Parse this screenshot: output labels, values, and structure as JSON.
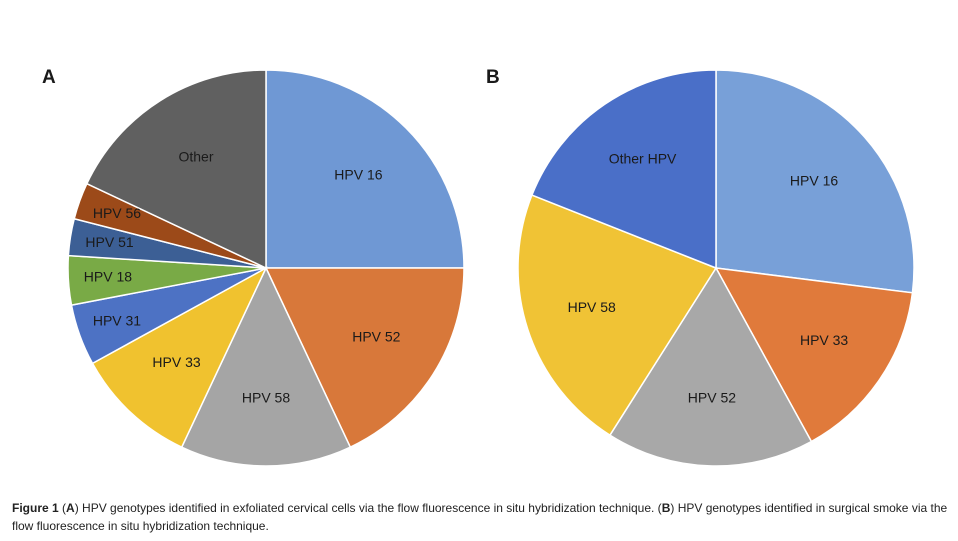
{
  "chart_data": [
    {
      "type": "pie",
      "panel": "A",
      "categories": [
        "HPV 16",
        "HPV 52",
        "HPV 58",
        "HPV 33",
        "HPV 31",
        "HPV 18",
        "HPV 51",
        "HPV 56",
        "Other"
      ],
      "values": [
        25,
        18,
        14,
        10,
        5,
        4,
        3,
        3,
        18
      ],
      "colors": [
        "#6f98d4",
        "#d8783a",
        "#a5a5a5",
        "#f0c22f",
        "#4d72c4",
        "#79aa46",
        "#3c5f95",
        "#9c4a19",
        "#606060"
      ]
    },
    {
      "type": "pie",
      "panel": "B",
      "categories": [
        "HPV 16",
        "HPV 33",
        "HPV 52",
        "HPV 58",
        "Other HPV"
      ],
      "values": [
        27,
        15,
        17,
        22,
        19
      ],
      "colors": [
        "#78a0d8",
        "#e07a3b",
        "#a8a8a8",
        "#f0c335",
        "#4a6fc8"
      ]
    }
  ],
  "caption": [
    "Figure 1",
    " (",
    "A",
    ") HPV genotypes identified in exfoliated cervical cells via the flow fluorescence in situ hybridization technique. (",
    "B",
    ") HPV genotypes identified in surgical smoke via the flow fluorescence in situ hybridization technique."
  ]
}
